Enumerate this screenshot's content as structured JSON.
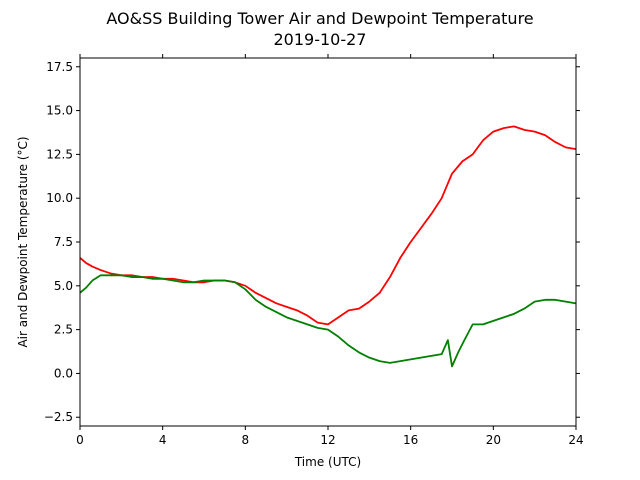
{
  "chart_data": {
    "type": "line",
    "title": "AO&SS Building Tower Air and Dewpoint Temperature",
    "subtitle": "2019-10-27",
    "xlabel": "Time (UTC)",
    "ylabel": "Air and Dewpoint Temperature (°C)",
    "xlim": [
      0,
      24
    ],
    "ylim": [
      -3,
      18
    ],
    "xticks": [
      0,
      4,
      8,
      12,
      16,
      20,
      24
    ],
    "yticks": [
      -2.5,
      0.0,
      2.5,
      5.0,
      7.5,
      10.0,
      12.5,
      15.0,
      17.5
    ],
    "ytick_labels": [
      "−2.5",
      "0.0",
      "2.5",
      "5.0",
      "7.5",
      "10.0",
      "12.5",
      "15.0",
      "17.5"
    ],
    "grid": false,
    "legend": "none",
    "series": [
      {
        "color": "#ff0000",
        "x": [
          0,
          0.3,
          0.6,
          1.0,
          1.5,
          2.0,
          2.5,
          3.0,
          3.5,
          4.0,
          4.5,
          5.0,
          5.5,
          6.0,
          6.5,
          7.0,
          7.5,
          8.0,
          8.5,
          9.0,
          9.5,
          10.0,
          10.5,
          11.0,
          11.5,
          12.0,
          12.5,
          13.0,
          13.5,
          14.0,
          14.5,
          15.0,
          15.5,
          16.0,
          16.5,
          17.0,
          17.5,
          18.0,
          18.5,
          19.0,
          19.5,
          20.0,
          20.5,
          21.0,
          21.5,
          22.0,
          22.5,
          23.0,
          23.5,
          24.0
        ],
        "y": [
          6.6,
          6.3,
          6.1,
          5.9,
          5.7,
          5.6,
          5.6,
          5.5,
          5.5,
          5.4,
          5.4,
          5.3,
          5.2,
          5.2,
          5.3,
          5.3,
          5.2,
          5.0,
          4.6,
          4.3,
          4.0,
          3.8,
          3.6,
          3.3,
          2.9,
          2.8,
          3.2,
          3.6,
          3.7,
          4.1,
          4.6,
          5.5,
          6.6,
          7.5,
          8.3,
          9.1,
          10.0,
          11.4,
          12.1,
          12.5,
          13.3,
          13.8,
          14.0,
          14.1,
          13.9,
          13.8,
          13.6,
          13.2,
          12.9,
          12.8
        ]
      },
      {
        "color": "#008000",
        "x": [
          0,
          0.3,
          0.6,
          1.0,
          1.5,
          2.0,
          2.5,
          3.0,
          3.5,
          4.0,
          4.5,
          5.0,
          5.5,
          6.0,
          6.5,
          7.0,
          7.5,
          8.0,
          8.5,
          9.0,
          9.5,
          10.0,
          10.5,
          11.0,
          11.5,
          12.0,
          12.5,
          13.0,
          13.5,
          14.0,
          14.5,
          15.0,
          15.5,
          16.0,
          16.5,
          17.0,
          17.5,
          17.8,
          18.0,
          18.3,
          18.6,
          19.0,
          19.5,
          20.0,
          20.5,
          21.0,
          21.5,
          22.0,
          22.5,
          23.0,
          23.5,
          24.0
        ],
        "y": [
          4.6,
          4.9,
          5.3,
          5.6,
          5.6,
          5.6,
          5.5,
          5.5,
          5.4,
          5.4,
          5.3,
          5.2,
          5.2,
          5.3,
          5.3,
          5.3,
          5.2,
          4.8,
          4.2,
          3.8,
          3.5,
          3.2,
          3.0,
          2.8,
          2.6,
          2.5,
          2.1,
          1.6,
          1.2,
          0.9,
          0.7,
          0.6,
          0.7,
          0.8,
          0.9,
          1.0,
          1.1,
          1.9,
          0.4,
          1.2,
          1.9,
          2.8,
          2.8,
          3.0,
          3.2,
          3.4,
          3.7,
          4.1,
          4.2,
          4.2,
          4.1,
          4.0
        ]
      }
    ]
  }
}
